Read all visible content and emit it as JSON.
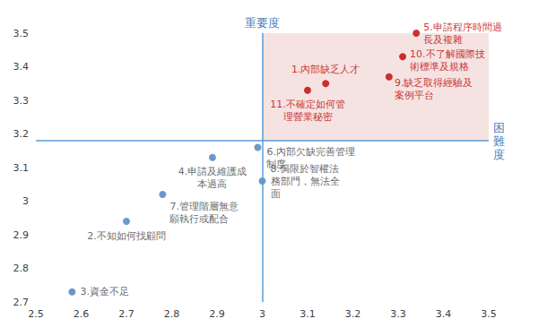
{
  "chart_data": {
    "type": "scatter",
    "xlabel": "困難度",
    "ylabel": "重要度",
    "xlim": [
      2.5,
      3.5
    ],
    "xticks": [
      2.5,
      2.6,
      2.7,
      2.8,
      2.9,
      3,
      3.1,
      3.2,
      3.3,
      3.4,
      3.5
    ],
    "ylim": [
      2.7,
      3.5
    ],
    "yticks": [
      2.7,
      2.8,
      2.9,
      3,
      3.1,
      3.2,
      3.3,
      3.4,
      3.5
    ],
    "grid": false,
    "reference_lines": {
      "x": 3,
      "y": 3.18
    },
    "series": [
      {
        "color": "#c00000",
        "marker": "circle",
        "points": [
          {
            "x": 3.34,
            "y": 3.5,
            "label": "5.申請程序時間過長及複雜"
          },
          {
            "x": 3.31,
            "y": 3.43,
            "label": "10.不了解國際技術標準及規格"
          },
          {
            "x": 3.14,
            "y": 3.35,
            "label": "1.內部缺乏人才"
          },
          {
            "x": 3.28,
            "y": 3.37,
            "label": "9.缺乏取得經驗及案例平台"
          },
          {
            "x": 3.1,
            "y": 3.33,
            "label": "11.不確定如何管理營業秘密"
          }
        ]
      },
      {
        "color": "#4a7ebb",
        "marker": "circle",
        "points": [
          {
            "x": 2.99,
            "y": 3.16,
            "label": "6.內部欠缺完善管理制度"
          },
          {
            "x": 2.89,
            "y": 3.13,
            "label": "4.申請及維護成本過高"
          },
          {
            "x": 3.0,
            "y": 3.06,
            "label": "8.侷限於智權法務部門，無法全面"
          },
          {
            "x": 2.78,
            "y": 3.02,
            "label": "7.管理階層無意願執行或配合"
          },
          {
            "x": 2.7,
            "y": 2.94,
            "label": "2.不知如何找顧問"
          },
          {
            "x": 2.58,
            "y": 2.73,
            "label": "3.資金不足"
          }
        ]
      }
    ]
  }
}
